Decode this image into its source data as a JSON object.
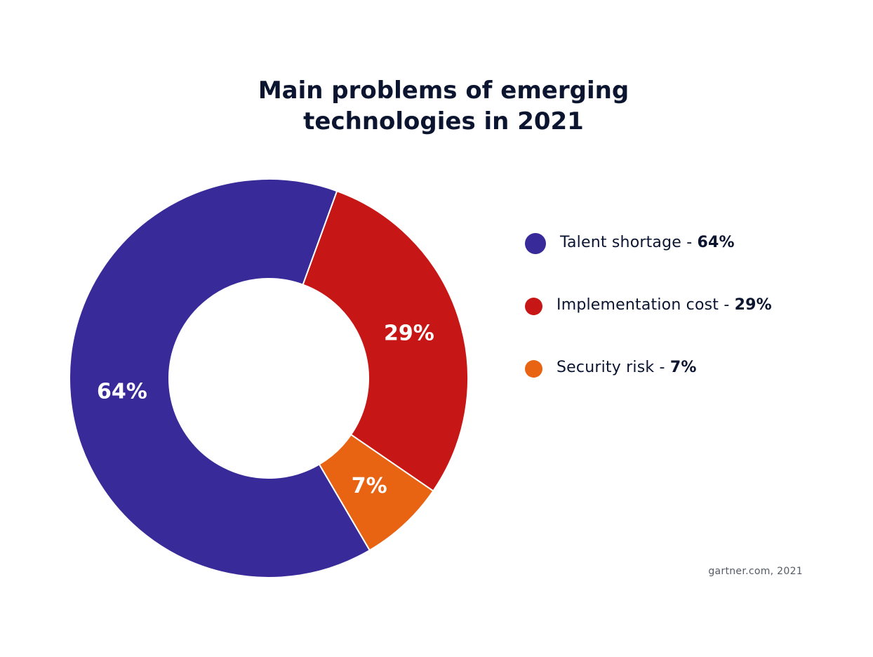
{
  "title_line1": "Main problems of emerging",
  "title_line2": "technologies in 2021",
  "source": "gartner.com, 2021",
  "chart_data": {
    "type": "pie",
    "title": "Main problems of emerging technologies in 2021",
    "donut": true,
    "categories": [
      "Talent shortage",
      "Implementation cost",
      "Security risk"
    ],
    "values": [
      64,
      29,
      7
    ],
    "unit": "%",
    "data_labels": [
      "64%",
      "29%",
      "7%"
    ],
    "colors": [
      "#382b99",
      "#c61716",
      "#e86413"
    ],
    "legend": {
      "placement": "right",
      "entries": [
        {
          "label": "Talent shortage - ",
          "value": "64%",
          "color": "#382b99"
        },
        {
          "label": "Implementation cost - ",
          "value": "29%",
          "color": "#c61716"
        },
        {
          "label": "Security risk - ",
          "value": "7%",
          "color": "#e86413"
        }
      ]
    }
  }
}
